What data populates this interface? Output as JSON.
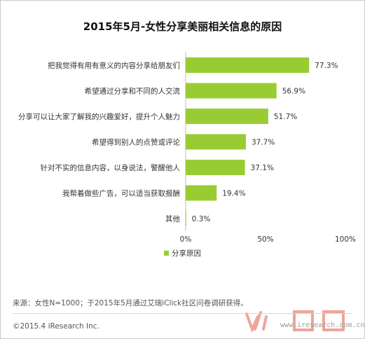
{
  "title": "2015年5月-女性分享美丽相关信息的原因",
  "chart_data": {
    "type": "bar",
    "orientation": "horizontal",
    "categories": [
      "把我觉得有用有意义的内容分享给朋友们",
      "希望通过分享和不同的人交流",
      "分享可以让大家了解我的兴趣爱好，提升个人魅力",
      "希望得到别人的点赞或评论",
      "针对不实的信息内容，以身说法，警醒他人",
      "我帮着做些广告，可以适当获取报酬",
      "其他"
    ],
    "series": [
      {
        "name": "分享原因",
        "values": [
          77.3,
          56.9,
          51.7,
          37.7,
          37.1,
          19.4,
          0.3
        ]
      }
    ],
    "value_labels": [
      "77.3%",
      "56.9%",
      "51.7%",
      "37.7%",
      "37.1%",
      "19.4%",
      "0.3%"
    ],
    "xlim": [
      0,
      100
    ],
    "xticks": [
      "0%",
      "50%",
      "100%"
    ],
    "grid": false,
    "legend": "bottom",
    "color": "#99cc33"
  },
  "footnote": "来源：女性N=1000；于2015年5月通过艾瑞iClick社区问卷调研获得。",
  "copyright": "©2015.4 iResearch Inc.",
  "watermark": "www.iresearch.com.cn"
}
